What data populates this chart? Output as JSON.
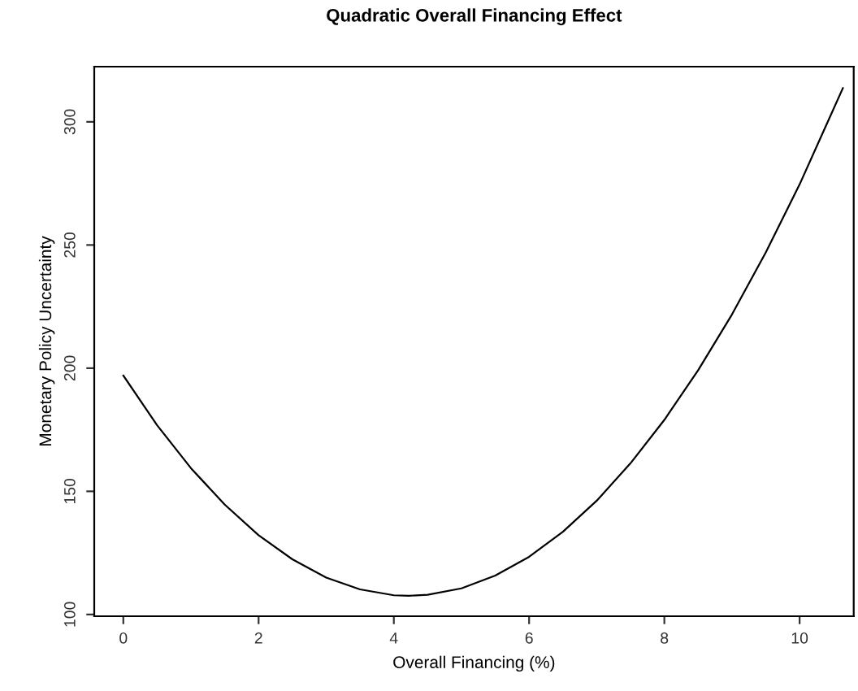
{
  "chart_data": {
    "type": "line",
    "title": "Quadratic Overall Financing Effect",
    "xlabel": "Overall Financing (%)",
    "ylabel": "Monetary Policy Uncertainty",
    "x": [
      0,
      0.5,
      1,
      1.5,
      2,
      2.5,
      3,
      3.5,
      4,
      4.22,
      4.5,
      5,
      5.5,
      6,
      6.5,
      7,
      7.5,
      8,
      8.5,
      9,
      9.5,
      10,
      10.64
    ],
    "series": [
      {
        "color": "#000000",
        "values": [
          197,
          176.8,
          159.4,
          144.6,
          132.2,
          122.4,
          115,
          110.2,
          107.8,
          107.6,
          108,
          110.6,
          115.8,
          123.4,
          133.6,
          146.2,
          161.4,
          179,
          199.2,
          221.8,
          247,
          274.6,
          313.7
        ]
      }
    ],
    "xlim": [
      -0.43,
      10.8
    ],
    "ylim": [
      99.3,
      322.4
    ],
    "xticks": [
      0,
      2,
      4,
      6,
      8,
      10
    ],
    "yticks": [
      100,
      150,
      200,
      250,
      300
    ],
    "grid": false,
    "legend": false,
    "marker": "none",
    "line_style": "solid"
  }
}
